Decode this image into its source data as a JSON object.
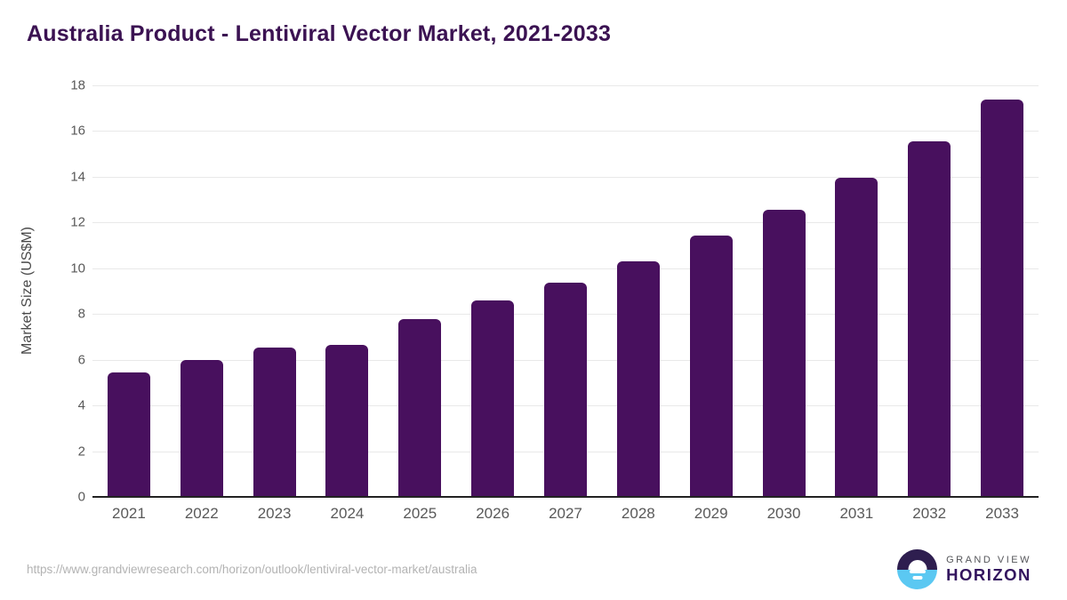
{
  "title": "Australia Product - Lentiviral Vector Market, 2021-2033",
  "chart_data": {
    "type": "bar",
    "title": "Australia Product - Lentiviral Vector Market, 2021-2033",
    "categories": [
      "2021",
      "2022",
      "2023",
      "2024",
      "2025",
      "2026",
      "2027",
      "2028",
      "2029",
      "2030",
      "2031",
      "2032",
      "2033"
    ],
    "values": [
      5.45,
      5.98,
      6.52,
      6.63,
      7.77,
      8.58,
      9.38,
      10.3,
      11.42,
      12.55,
      13.96,
      15.56,
      17.39
    ],
    "xlabel": "",
    "ylabel": "Market Size (US$M)",
    "ylim": [
      0,
      18
    ],
    "yticks": [
      0,
      2,
      4,
      6,
      8,
      10,
      12,
      14,
      16,
      18
    ],
    "grid": true,
    "legend": "none",
    "bar_color": "#48105e"
  },
  "colors": {
    "title": "#3b1252",
    "bar": "#48105e",
    "gridline": "#e9e9e9",
    "axis_line": "#222222",
    "tick_label": "#595959",
    "url_text": "#b3b3b3",
    "logo_navy": "#2e1e4f",
    "logo_blue": "#5bc8f2"
  },
  "footer": {
    "source_url": "https://www.grandviewresearch.com/horizon/outlook/lentiviral-vector-market/australia",
    "logo": {
      "brand_top": "GRAND VIEW",
      "brand_bottom": "HORIZON"
    }
  }
}
